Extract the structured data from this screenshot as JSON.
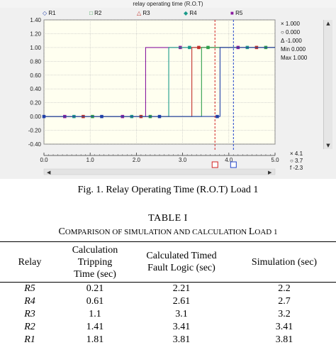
{
  "scope": {
    "title": "relay operating time (R.O.T)",
    "legend": [
      {
        "label": "R1",
        "marker": "◇",
        "color": "#1f3fa8"
      },
      {
        "label": "R2",
        "marker": "□",
        "color": "#2e9e4a"
      },
      {
        "label": "R3",
        "marker": "△",
        "color": "#c0302a"
      },
      {
        "label": "R4",
        "marker": "◆",
        "color": "#1a9a8a"
      },
      {
        "label": "R5",
        "marker": "■",
        "color": "#8a1aa0"
      }
    ],
    "side_panel": [
      "× 1.000",
      "○ 0.000",
      "Δ -1.000",
      "Min 0.000",
      "Max 1.000"
    ],
    "x_readout": [
      "× 4.1",
      "○ 3.7",
      "f -2.3"
    ],
    "cursor_labels": [
      "⊠",
      "⊠"
    ]
  },
  "chart_data": {
    "type": "line",
    "title": "relay operating time (R.O.T)",
    "xlabel": "",
    "ylabel": "",
    "xlim": [
      0,
      5.0
    ],
    "ylim": [
      -0.4,
      1.4
    ],
    "xticks": [
      "0.0",
      "1.0",
      "2.0",
      "3.0",
      "4.0",
      "5.0"
    ],
    "yticks": [
      "1.40",
      "1.20",
      "1.00",
      "0.80",
      "0.60",
      "0.40",
      "0.20",
      "0.00",
      "-0.20",
      "-0.40"
    ],
    "grid": true,
    "legend_position": "top",
    "series": [
      {
        "name": "R1",
        "color": "#1f3fa8",
        "step_at": 3.81
      },
      {
        "name": "R2",
        "color": "#2e9e4a",
        "step_at": 3.41
      },
      {
        "name": "R3",
        "color": "#c0302a",
        "step_at": 3.2
      },
      {
        "name": "R4",
        "color": "#1a9a8a",
        "step_at": 2.7
      },
      {
        "name": "R5",
        "color": "#8a1aa0",
        "step_at": 2.2
      }
    ],
    "cursors": [
      3.7,
      4.1
    ]
  },
  "figure": {
    "caption": "Fig. 1. Relay Operating Time (R.O.T) Load 1"
  },
  "table": {
    "title": "TABLE I",
    "subtitle_parts": [
      "C",
      "OMPARISON OF SIMULATION AND CALCULATION ",
      "L",
      "OAD 1"
    ],
    "headers": [
      [
        "Relay"
      ],
      [
        "Calculation",
        "Tripping",
        "Time (sec)"
      ],
      [
        "Calculated Timed",
        "Fault Logic (sec)"
      ],
      [
        "Simulation (sec)"
      ]
    ],
    "rows": [
      [
        "R5",
        "0.21",
        "2.21",
        "2.2"
      ],
      [
        "R4",
        "0.61",
        "2.61",
        "2.7"
      ],
      [
        "R3",
        "1.1",
        "3.1",
        "3.2"
      ],
      [
        "R2",
        "1.41",
        "3.41",
        "3.41"
      ],
      [
        "R1",
        "1.81",
        "3.81",
        "3.81"
      ]
    ]
  }
}
